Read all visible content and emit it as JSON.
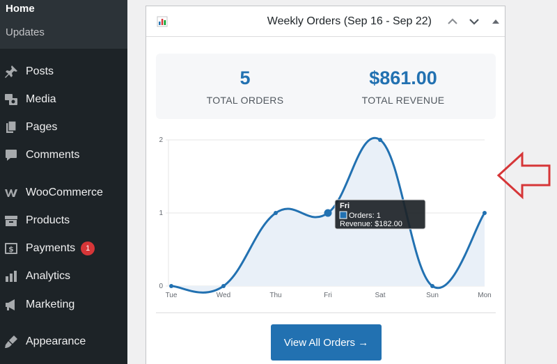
{
  "sidebar": {
    "submenu": {
      "home": "Home",
      "updates": "Updates"
    },
    "items": [
      {
        "label": "Posts",
        "icon": "pin-icon"
      },
      {
        "label": "Media",
        "icon": "media-icon"
      },
      {
        "label": "Pages",
        "icon": "pages-icon"
      },
      {
        "label": "Comments",
        "icon": "comments-icon"
      },
      {
        "label": "WooCommerce",
        "icon": "woocommerce-icon"
      },
      {
        "label": "Products",
        "icon": "products-icon"
      },
      {
        "label": "Payments",
        "icon": "payments-icon",
        "badge": "1"
      },
      {
        "label": "Analytics",
        "icon": "analytics-icon"
      },
      {
        "label": "Marketing",
        "icon": "megaphone-icon"
      },
      {
        "label": "Appearance",
        "icon": "brush-icon"
      }
    ]
  },
  "widget": {
    "title": "Weekly Orders (Sep 16 - Sep 22)",
    "stats": {
      "orders_value": "5",
      "orders_label": "TOTAL ORDERS",
      "revenue_value": "$861.00",
      "revenue_label": "TOTAL REVENUE"
    },
    "button_label": "View All Orders →"
  },
  "chart_data": {
    "type": "area",
    "categories": [
      "Tue",
      "Wed",
      "Thu",
      "Fri",
      "Sat",
      "Sun",
      "Mon"
    ],
    "series": [
      {
        "values": [
          0,
          0,
          1,
          1,
          2,
          0,
          1
        ]
      }
    ],
    "y_ticks": [
      "0",
      "1",
      "2"
    ],
    "ylim": [
      0,
      2
    ],
    "grid": true,
    "line_color": "#2271b1",
    "fill_color": "#e9f0f8",
    "tooltip": {
      "title": "Fri",
      "orders": "Orders: 1",
      "revenue": "Revenue: $182.00"
    }
  },
  "colors": {
    "accent": "#2271b1",
    "arrow": "#d63638"
  }
}
